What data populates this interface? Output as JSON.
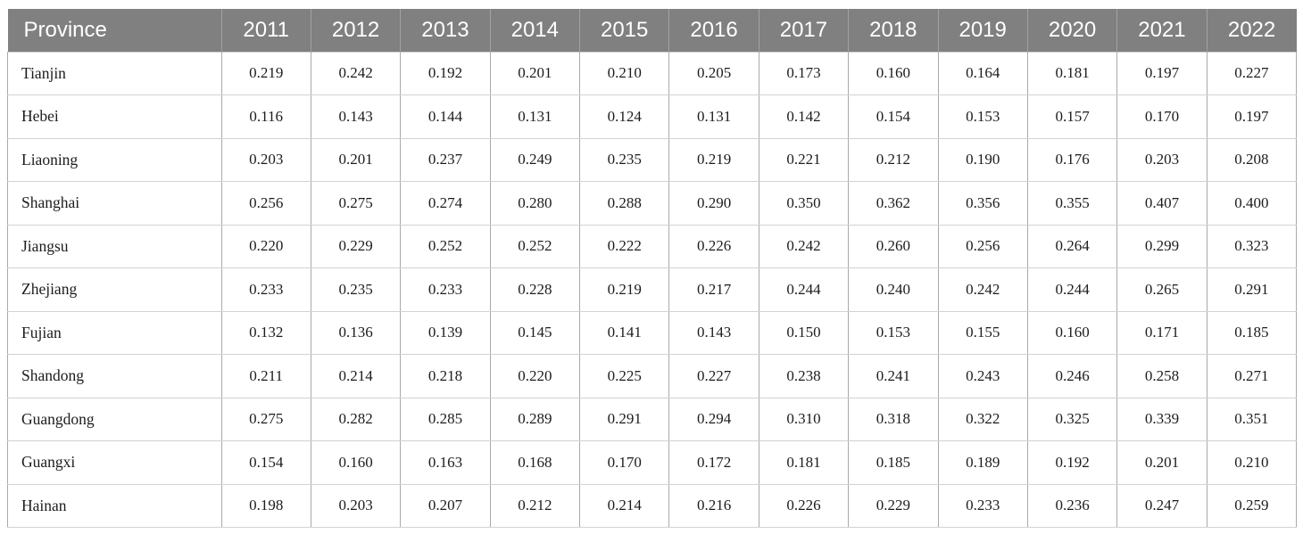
{
  "colors": {
    "header_bg": "#7f807f",
    "header_text": "#ffffff",
    "header_separator": "#a2a2a2",
    "body_text": "#1c1c1c",
    "border_vertical": "#aaaaaa",
    "border_horizontal": "#d2d2d2",
    "page_bg": "#ffffff"
  },
  "chart_data": {
    "type": "table",
    "columns": [
      "Province",
      "2011",
      "2012",
      "2013",
      "2014",
      "2015",
      "2016",
      "2017",
      "2018",
      "2019",
      "2020",
      "2021",
      "2022"
    ],
    "rows": [
      {
        "label": "Tianjin",
        "values": [
          "0.219",
          "0.242",
          "0.192",
          "0.201",
          "0.210",
          "0.205",
          "0.173",
          "0.160",
          "0.164",
          "0.181",
          "0.197",
          "0.227"
        ]
      },
      {
        "label": "Hebei",
        "values": [
          "0.116",
          "0.143",
          "0.144",
          "0.131",
          "0.124",
          "0.131",
          "0.142",
          "0.154",
          "0.153",
          "0.157",
          "0.170",
          "0.197"
        ]
      },
      {
        "label": "Liaoning",
        "values": [
          "0.203",
          "0.201",
          "0.237",
          "0.249",
          "0.235",
          "0.219",
          "0.221",
          "0.212",
          "0.190",
          "0.176",
          "0.203",
          "0.208"
        ]
      },
      {
        "label": "Shanghai",
        "values": [
          "0.256",
          "0.275",
          "0.274",
          "0.280",
          "0.288",
          "0.290",
          "0.350",
          "0.362",
          "0.356",
          "0.355",
          "0.407",
          "0.400"
        ]
      },
      {
        "label": "Jiangsu",
        "values": [
          "0.220",
          "0.229",
          "0.252",
          "0.252",
          "0.222",
          "0.226",
          "0.242",
          "0.260",
          "0.256",
          "0.264",
          "0.299",
          "0.323"
        ]
      },
      {
        "label": "Zhejiang",
        "values": [
          "0.233",
          "0.235",
          "0.233",
          "0.228",
          "0.219",
          "0.217",
          "0.244",
          "0.240",
          "0.242",
          "0.244",
          "0.265",
          "0.291"
        ]
      },
      {
        "label": "Fujian",
        "values": [
          "0.132",
          "0.136",
          "0.139",
          "0.145",
          "0.141",
          "0.143",
          "0.150",
          "0.153",
          "0.155",
          "0.160",
          "0.171",
          "0.185"
        ]
      },
      {
        "label": "Shandong",
        "values": [
          "0.211",
          "0.214",
          "0.218",
          "0.220",
          "0.225",
          "0.227",
          "0.238",
          "0.241",
          "0.243",
          "0.246",
          "0.258",
          "0.271"
        ]
      },
      {
        "label": "Guangdong",
        "values": [
          "0.275",
          "0.282",
          "0.285",
          "0.289",
          "0.291",
          "0.294",
          "0.310",
          "0.318",
          "0.322",
          "0.325",
          "0.339",
          "0.351"
        ]
      },
      {
        "label": "Guangxi",
        "values": [
          "0.154",
          "0.160",
          "0.163",
          "0.168",
          "0.170",
          "0.172",
          "0.181",
          "0.185",
          "0.189",
          "0.192",
          "0.201",
          "0.210"
        ]
      },
      {
        "label": "Hainan",
        "values": [
          "0.198",
          "0.203",
          "0.207",
          "0.212",
          "0.214",
          "0.216",
          "0.226",
          "0.229",
          "0.233",
          "0.236",
          "0.247",
          "0.259"
        ]
      }
    ]
  }
}
